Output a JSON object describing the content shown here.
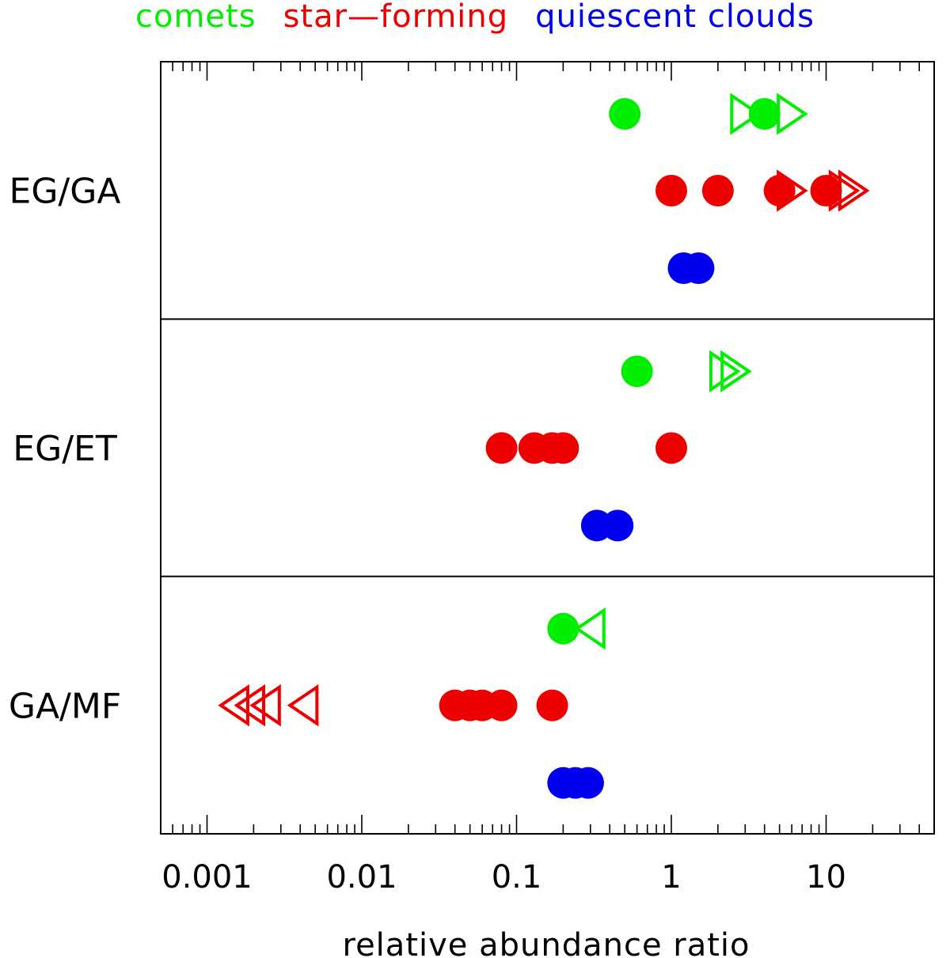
{
  "chart_data": {
    "type": "scatter",
    "title": "",
    "xlabel": "relative abundance ratio",
    "ylabel": "",
    "x_scale": "log",
    "xlim": [
      0.0005,
      50
    ],
    "x_ticks": [
      {
        "value": 0.001,
        "label": "0.001"
      },
      {
        "value": 0.01,
        "label": "0.01"
      },
      {
        "value": 0.1,
        "label": "0.1"
      },
      {
        "value": 1,
        "label": "1"
      },
      {
        "value": 10,
        "label": "10"
      }
    ],
    "grid": false,
    "legend_placement": "top",
    "legend": [
      {
        "key": "comets",
        "label": "comets",
        "color": "#00ee00"
      },
      {
        "key": "star_forming",
        "label": "star—forming",
        "color": "#ee0000"
      },
      {
        "key": "quiescent",
        "label": "quiescent clouds",
        "color": "#0000ee"
      }
    ],
    "markers": {
      "filled-circle": "measured value",
      "open-right-triangle": "lower limit",
      "open-left-triangle": "upper limit"
    },
    "panels": [
      {
        "label": "EG/GA",
        "series": [
          {
            "group": "comets",
            "values": [
              0.5,
              4
            ],
            "lower_limits": [
              3,
              6
            ]
          },
          {
            "group": "star_forming",
            "values": [
              1,
              2,
              5,
              10
            ],
            "lower_limits": [
              6,
              13,
              15
            ]
          },
          {
            "group": "quiescent",
            "values": [
              1.2,
              1.5
            ]
          }
        ]
      },
      {
        "label": "EG/ET",
        "series": [
          {
            "group": "comets",
            "values": [
              0.6
            ],
            "lower_limits": [
              2.2,
              2.6
            ]
          },
          {
            "group": "star_forming",
            "values": [
              0.08,
              0.13,
              0.17,
              0.2,
              1
            ]
          },
          {
            "group": "quiescent",
            "values": [
              0.33,
              0.45
            ]
          }
        ]
      },
      {
        "label": "GA/MF",
        "series": [
          {
            "group": "comets",
            "values": [
              0.2
            ],
            "upper_limits": [
              0.3
            ]
          },
          {
            "group": "star_forming",
            "values": [
              0.04,
              0.05,
              0.06,
              0.08,
              0.17
            ],
            "upper_limits": [
              0.0015,
              0.0019,
              0.0024,
              0.0042
            ]
          },
          {
            "group": "quiescent",
            "values": [
              0.2,
              0.24,
              0.29
            ]
          }
        ]
      }
    ]
  }
}
